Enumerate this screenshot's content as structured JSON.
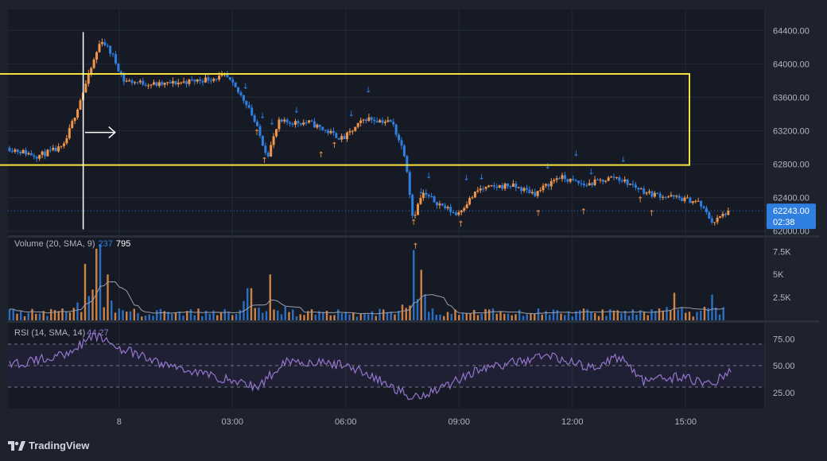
{
  "colors": {
    "background": "#1e222d",
    "pane_background": "#161a25",
    "up": "#f0954a",
    "down": "#2f7fe0",
    "rsi": "#9575cd",
    "box": "#f5e13c",
    "price_label": "#2f7fe0"
  },
  "price_pane": {
    "y_ticks": [
      "64400.00",
      "64000.00",
      "63600.00",
      "63200.00",
      "62800.00",
      "62400.00",
      "62000.00"
    ],
    "current_price": "62243.00",
    "countdown": "02:38"
  },
  "volume_pane": {
    "legend": "Volume (20, SMA, 9)",
    "legend_val1": "237",
    "legend_val2": "795",
    "y_ticks": [
      "7.5K",
      "5K",
      "2.5K"
    ]
  },
  "rsi_pane": {
    "legend": "RSI (14, SMA, 14)",
    "legend_val": "44.27",
    "y_ticks": [
      "75.00",
      "50.00",
      "25.00"
    ]
  },
  "x_axis": {
    "ticks": [
      "8",
      "03:00",
      "06:00",
      "09:00",
      "12:00",
      "15:00"
    ]
  },
  "brand": {
    "name": "TradingView",
    "logo_icon": "tradingview-logo-icon"
  },
  "chart_data": {
    "type": "candlestick",
    "price_range": [
      61950,
      64650
    ],
    "current_price": 62243,
    "time_ticks": [
      "8",
      "03:00",
      "06:00",
      "09:00",
      "12:00",
      "15:00"
    ],
    "price_key_points": [
      {
        "t": 0,
        "p": 63000
      },
      {
        "t": 0.8,
        "p": 62900
      },
      {
        "t": 1.5,
        "p": 63000
      },
      {
        "t": 2.2,
        "p": 63900
      },
      {
        "t": 2.5,
        "p": 64300
      },
      {
        "t": 2.8,
        "p": 64100
      },
      {
        "t": 3.1,
        "p": 63800
      },
      {
        "t": 4.0,
        "p": 63750
      },
      {
        "t": 5.0,
        "p": 63800
      },
      {
        "t": 5.8,
        "p": 63850
      },
      {
        "t": 6.4,
        "p": 63500
      },
      {
        "t": 6.9,
        "p": 62900
      },
      {
        "t": 7.2,
        "p": 63300
      },
      {
        "t": 8.0,
        "p": 63300
      },
      {
        "t": 8.9,
        "p": 63100
      },
      {
        "t": 9.5,
        "p": 63350
      },
      {
        "t": 10.2,
        "p": 63300
      },
      {
        "t": 10.55,
        "p": 62900
      },
      {
        "t": 10.75,
        "p": 62150
      },
      {
        "t": 11.0,
        "p": 62450
      },
      {
        "t": 11.9,
        "p": 62200
      },
      {
        "t": 12.5,
        "p": 62500
      },
      {
        "t": 13.3,
        "p": 62550
      },
      {
        "t": 14.0,
        "p": 62450
      },
      {
        "t": 14.6,
        "p": 62650
      },
      {
        "t": 15.3,
        "p": 62550
      },
      {
        "t": 16.1,
        "p": 62650
      },
      {
        "t": 17.0,
        "p": 62450
      },
      {
        "t": 17.7,
        "p": 62400
      },
      {
        "t": 18.3,
        "p": 62350
      },
      {
        "t": 18.7,
        "p": 62100
      },
      {
        "t": 19.1,
        "p": 62243
      }
    ],
    "box": {
      "t_start": -0.3,
      "t_end": 18.0,
      "p_high": 63880,
      "p_low": 62790
    },
    "vertical_line": {
      "t": 1.95,
      "p_top": 64380,
      "p_bottom": 62020
    },
    "arrow": {
      "t_start": 2.0,
      "t_end": 2.5,
      "p": 63180
    },
    "volume_range": [
      0,
      9000
    ],
    "volume_peaks": [
      {
        "t": 2.0,
        "v": 5500
      },
      {
        "t": 2.35,
        "v": 7300
      },
      {
        "t": 2.6,
        "v": 5000
      },
      {
        "t": 6.35,
        "v": 3500
      },
      {
        "t": 6.9,
        "v": 5000
      },
      {
        "t": 10.7,
        "v": 7000
      },
      {
        "t": 10.9,
        "v": 5500
      },
      {
        "t": 17.6,
        "v": 3000
      },
      {
        "t": 18.6,
        "v": 2800
      }
    ],
    "rsi_range": [
      10,
      90
    ],
    "rsi_levels": [
      70,
      50,
      30
    ],
    "rsi_key_points": [
      {
        "t": 0,
        "p": 50
      },
      {
        "t": 1.4,
        "p": 60
      },
      {
        "t": 2.3,
        "p": 78
      },
      {
        "t": 3.0,
        "p": 65
      },
      {
        "t": 4.0,
        "p": 52
      },
      {
        "t": 6.6,
        "p": 30
      },
      {
        "t": 7.3,
        "p": 55
      },
      {
        "t": 9.0,
        "p": 50
      },
      {
        "t": 10.7,
        "p": 20
      },
      {
        "t": 11.6,
        "p": 32
      },
      {
        "t": 12.3,
        "p": 45
      },
      {
        "t": 14.3,
        "p": 60
      },
      {
        "t": 15.3,
        "p": 48
      },
      {
        "t": 16.2,
        "p": 58
      },
      {
        "t": 16.8,
        "p": 35
      },
      {
        "t": 17.8,
        "p": 40
      },
      {
        "t": 18.5,
        "p": 32
      },
      {
        "t": 19.1,
        "p": 44
      }
    ],
    "buy_signal_times": [
      6.55,
      6.75,
      8.25,
      8.6,
      10.7,
      10.75,
      11.95,
      14.0,
      15.2,
      16.7,
      17.0
    ],
    "sell_signal_times": [
      6.25,
      6.7,
      6.95,
      7.6,
      9.05,
      9.5,
      10.9,
      11.1,
      12.1,
      12.5,
      14.25,
      15.0,
      15.4,
      16.25
    ]
  }
}
